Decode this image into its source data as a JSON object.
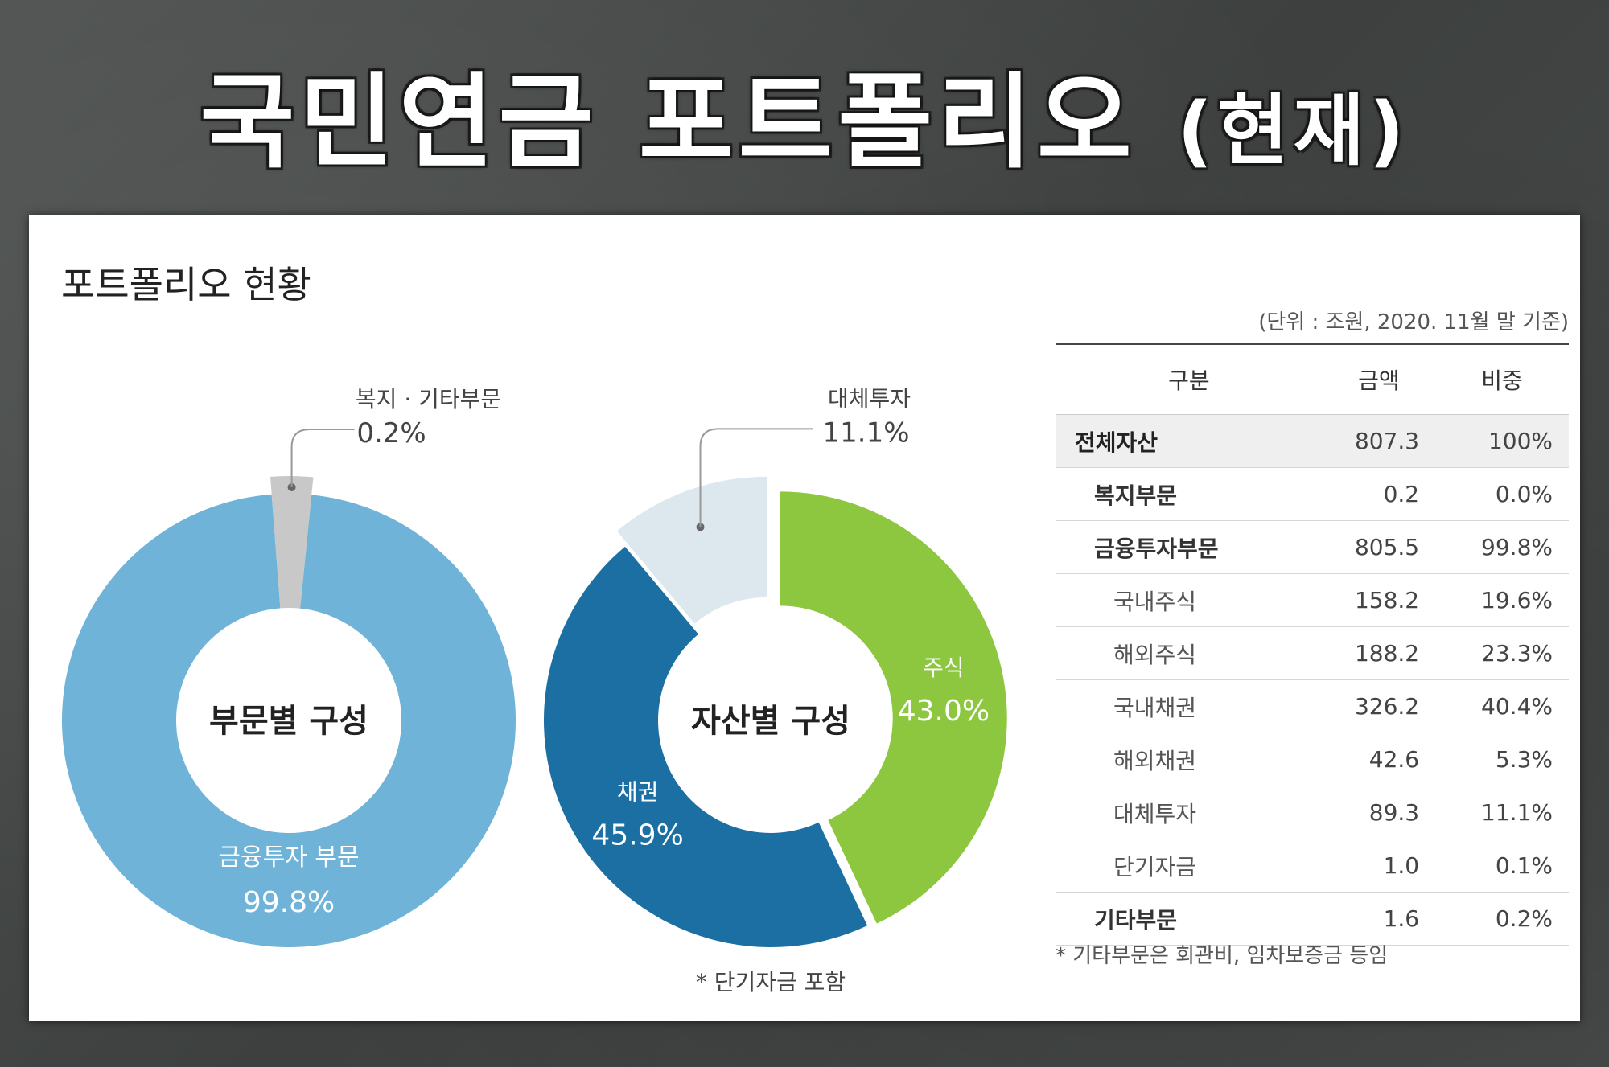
{
  "title_main": "국민연금 포트폴리오",
  "title_paren": "(현재)",
  "panel_title": "포트폴리오 현황",
  "unit_note": "(단위 : 조원, 2020. 11월 말 기준)",
  "chart_data": [
    {
      "type": "pie",
      "center_label": "부문별 구성",
      "categories": [
        "금융투자 부문",
        "복지 · 기타부문"
      ],
      "values": [
        99.8,
        0.2
      ],
      "value_labels": [
        "99.8%",
        "0.2%"
      ],
      "colors": [
        "#6fb3d8",
        "#c8c8c8"
      ]
    },
    {
      "type": "pie",
      "center_label": "자산별 구성",
      "categories": [
        "주식",
        "채권",
        "대체투자"
      ],
      "values": [
        43.0,
        45.9,
        11.1
      ],
      "value_labels": [
        "43.0%",
        "45.9%",
        "11.1%"
      ],
      "colors": [
        "#8dc63f",
        "#1c6fa3",
        "#dde7ee"
      ],
      "footnote": "* 단기자금 포함"
    }
  ],
  "table": {
    "headers": [
      "구분",
      "금액",
      "비중"
    ],
    "rows": [
      {
        "name": "전체자산",
        "amount": "807.3",
        "share": "100%",
        "level": 0
      },
      {
        "name": "복지부문",
        "amount": "0.2",
        "share": "0.0%",
        "level": 1
      },
      {
        "name": "금융투자부문",
        "amount": "805.5",
        "share": "99.8%",
        "level": 1
      },
      {
        "name": "국내주식",
        "amount": "158.2",
        "share": "19.6%",
        "level": 2
      },
      {
        "name": "해외주식",
        "amount": "188.2",
        "share": "23.3%",
        "level": 2
      },
      {
        "name": "국내채권",
        "amount": "326.2",
        "share": "40.4%",
        "level": 2
      },
      {
        "name": "해외채권",
        "amount": "42.6",
        "share": "5.3%",
        "level": 2
      },
      {
        "name": "대체투자",
        "amount": "89.3",
        "share": "11.1%",
        "level": 2
      },
      {
        "name": "단기자금",
        "amount": "1.0",
        "share": "0.1%",
        "level": 2
      },
      {
        "name": "기타부문",
        "amount": "1.6",
        "share": "0.2%",
        "level": 1
      }
    ],
    "footnote": "* 기타부문은 회관비, 임차보증금 등임"
  }
}
